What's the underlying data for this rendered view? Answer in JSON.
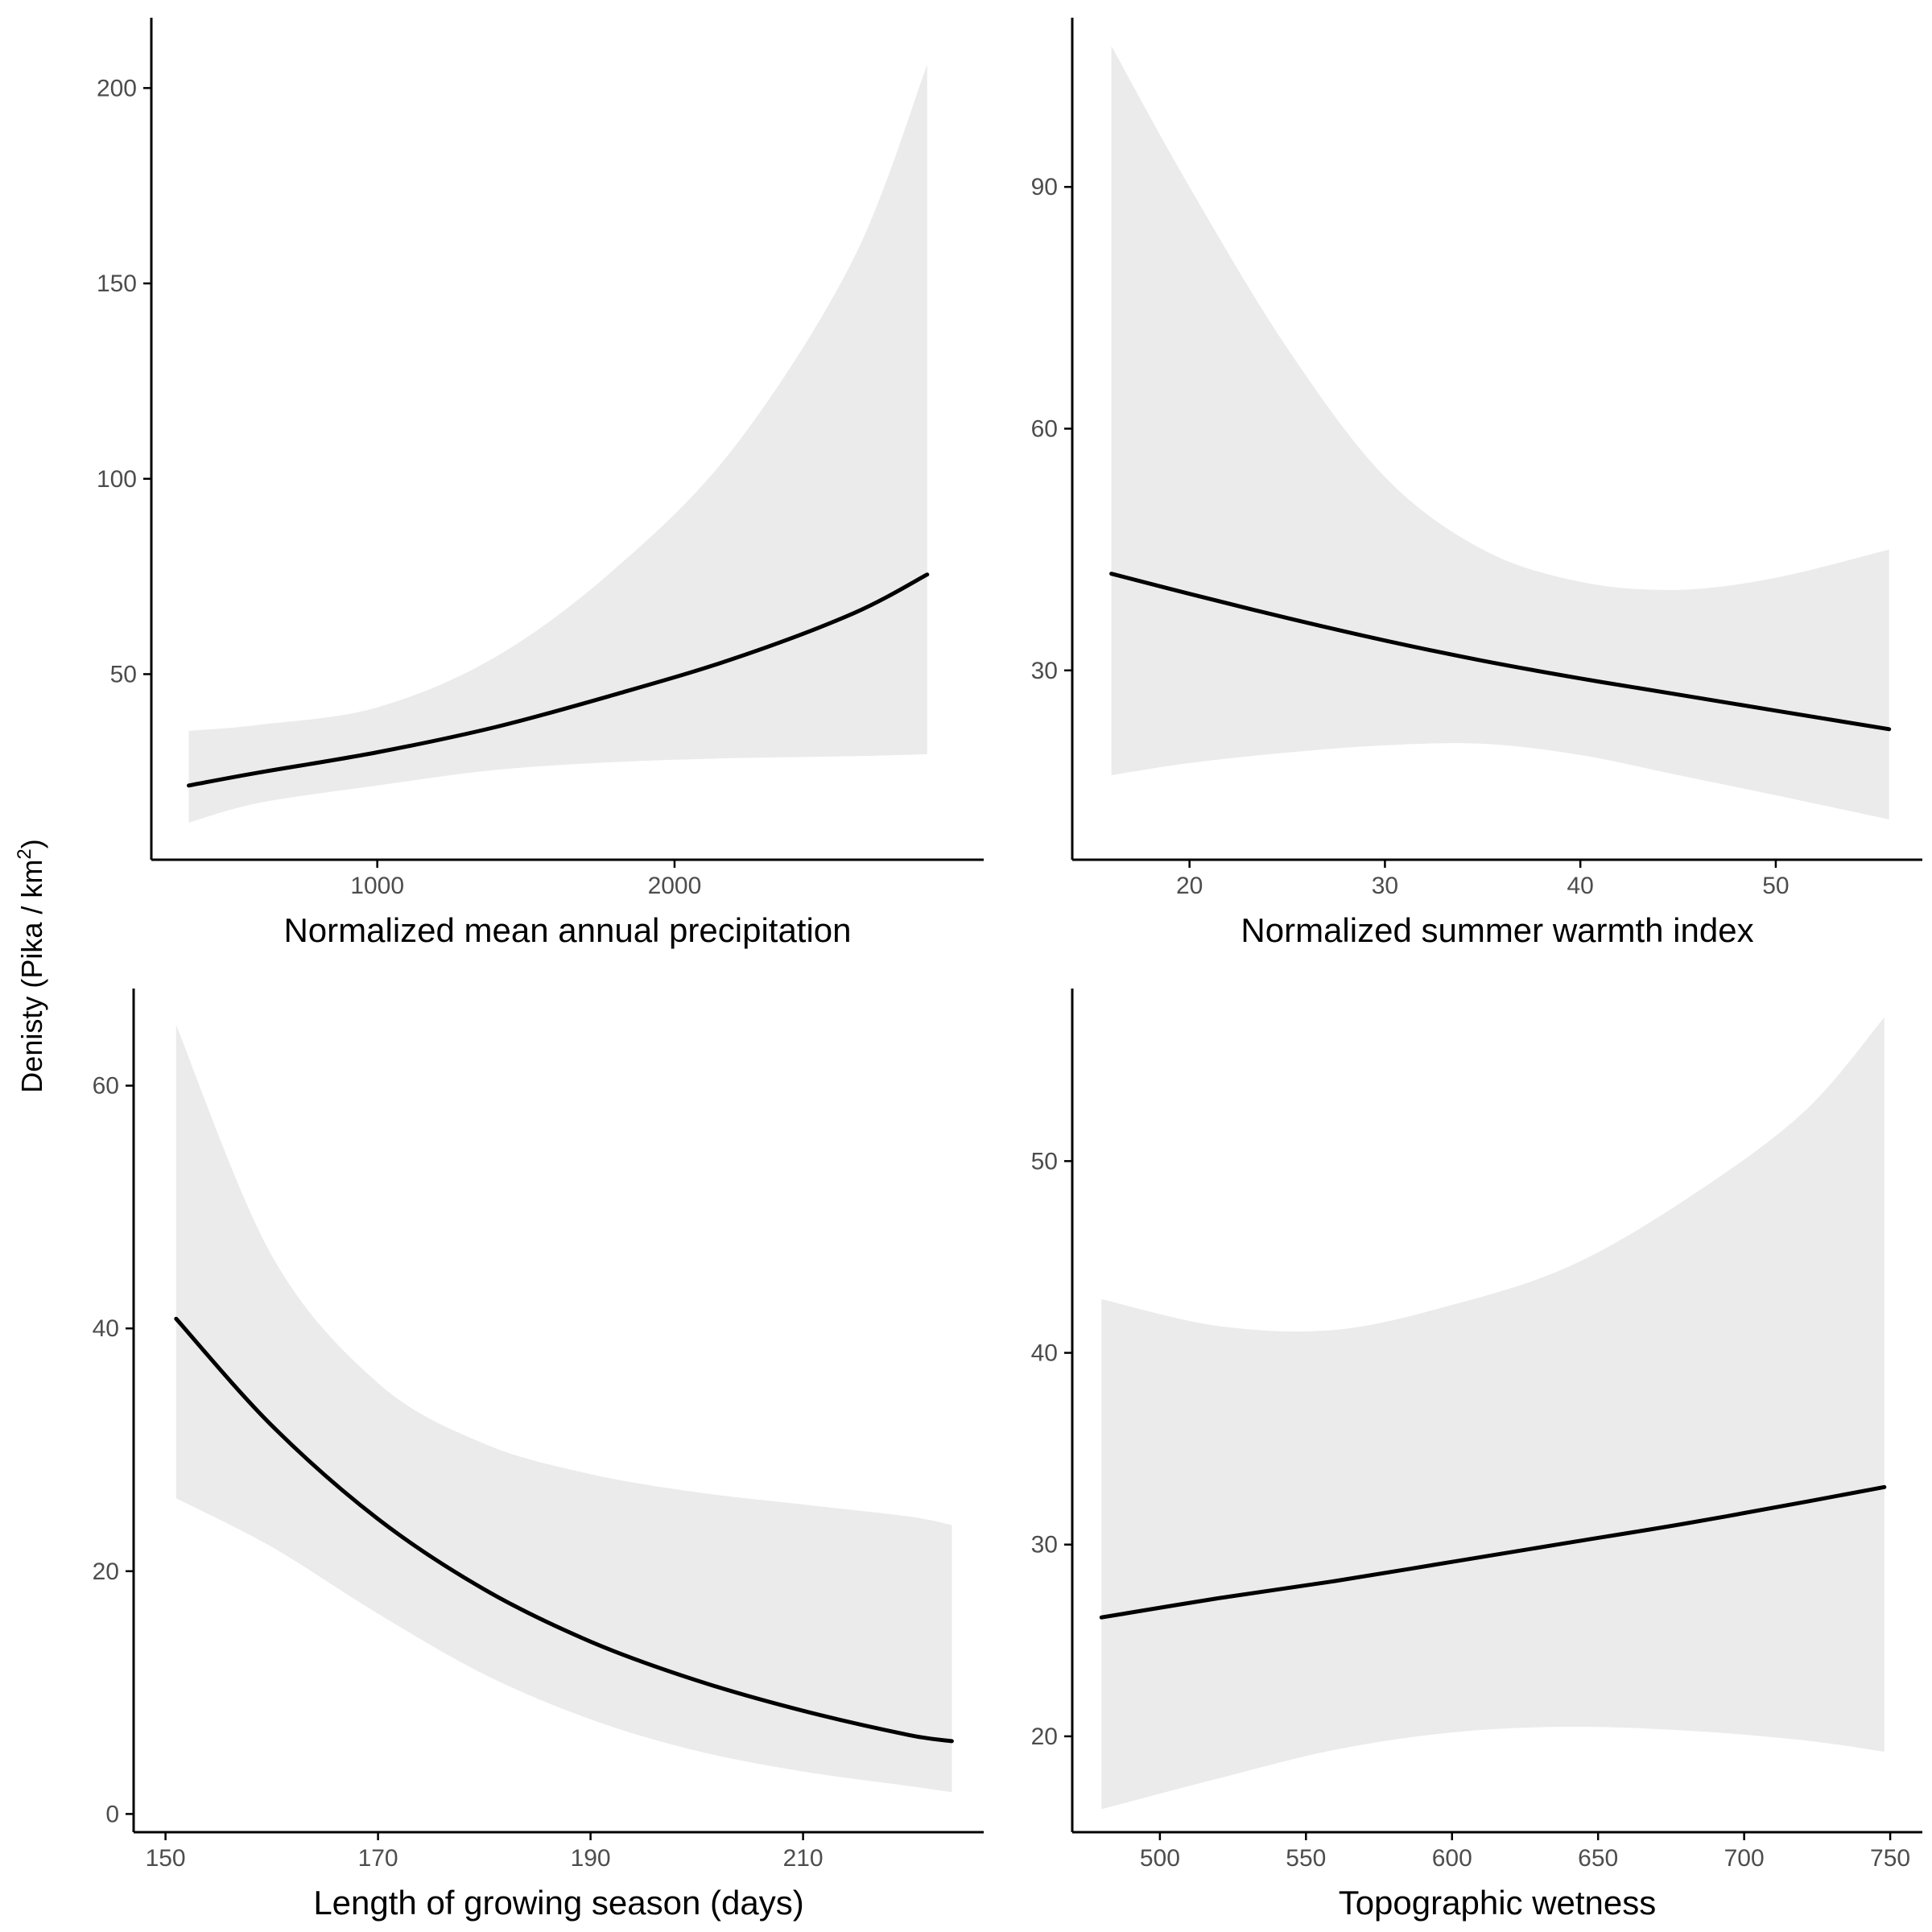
{
  "colors": {
    "ribbon": "#ebebeb",
    "line": "#000000",
    "axis": "#000000",
    "tick_label": "#4d4d4d"
  },
  "ylabel": {
    "main": "Denisty (Pika / km",
    "sup": "2",
    "close": ")"
  },
  "chart_data": [
    {
      "type": "line",
      "xlabel": "Normalized mean annual precipitation",
      "xlim": [
        240,
        3040
      ],
      "ylim": [
        2.5,
        218
      ],
      "xticks": [
        1000,
        2000
      ],
      "yticks": [
        50,
        100,
        150,
        200
      ],
      "x": [
        366,
        600,
        1000,
        1400,
        1800,
        2200,
        2600,
        2850
      ],
      "series": [
        {
          "values": [
            21.5,
            24.8,
            30.0,
            36.5,
            44.8,
            54.0,
            65.5,
            75.5
          ]
        }
      ],
      "ribbon_lower": [
        12,
        17,
        21.5,
        25.5,
        27.5,
        28.5,
        29,
        29.5
      ],
      "ribbon_upper": [
        35.5,
        37.0,
        41.5,
        54.5,
        77,
        108,
        156,
        206
      ]
    },
    {
      "type": "line",
      "xlabel": "Normalized summer warmth index",
      "xlim": [
        14,
        57.5
      ],
      "ylim": [
        6.5,
        111
      ],
      "xticks": [
        20,
        30,
        40,
        50
      ],
      "yticks": [
        30,
        60,
        90
      ],
      "x": [
        16,
        20,
        25,
        30,
        35,
        40,
        45,
        50,
        55.8
      ],
      "series": [
        {
          "values": [
            42,
            39.5,
            36.5,
            33.7,
            31.2,
            29,
            27,
            25,
            22.7
          ]
        }
      ],
      "ribbon_lower": [
        17,
        18.5,
        19.8,
        20.7,
        20.9,
        19.5,
        17,
        14.5,
        11.5
      ],
      "ribbon_upper": [
        107.5,
        90,
        70,
        54,
        45,
        41,
        40,
        41.5,
        45
      ]
    },
    {
      "type": "line",
      "xlabel": "Length of growing season (days)",
      "xlim": [
        147,
        227
      ],
      "ylim": [
        -1.5,
        68
      ],
      "xticks": [
        150,
        170,
        190,
        210
      ],
      "yticks": [
        0,
        20,
        40,
        60
      ],
      "x": [
        151,
        160,
        170,
        180,
        190,
        200,
        210,
        220,
        224
      ],
      "series": [
        {
          "values": [
            40.8,
            32,
            24.3,
            18.5,
            14.2,
            11,
            8.5,
            6.5,
            6
          ]
        }
      ],
      "ribbon_lower": [
        26,
        22,
        16.5,
        11.5,
        7.8,
        5.2,
        3.5,
        2.3,
        1.8
      ],
      "ribbon_upper": [
        65,
        46,
        35.5,
        30.5,
        28,
        26.5,
        25.5,
        24.5,
        23.8
      ]
    },
    {
      "type": "line",
      "xlabel": "Topographic wetness",
      "xlim": [
        470,
        761
      ],
      "ylim": [
        15,
        59
      ],
      "xticks": [
        500,
        550,
        600,
        650,
        700,
        750
      ],
      "yticks": [
        20,
        30,
        40,
        50
      ],
      "x": [
        480,
        520,
        560,
        600,
        640,
        680,
        720,
        748
      ],
      "series": [
        {
          "values": [
            26.2,
            27.2,
            28.1,
            29.1,
            30.1,
            31.1,
            32.2,
            33
          ]
        }
      ],
      "ribbon_lower": [
        16.2,
        17.8,
        19.3,
        20.2,
        20.5,
        20.3,
        19.8,
        19.2
      ],
      "ribbon_upper": [
        42.8,
        41.4,
        41.2,
        42.5,
        44.5,
        48,
        52.5,
        57.5
      ]
    }
  ]
}
